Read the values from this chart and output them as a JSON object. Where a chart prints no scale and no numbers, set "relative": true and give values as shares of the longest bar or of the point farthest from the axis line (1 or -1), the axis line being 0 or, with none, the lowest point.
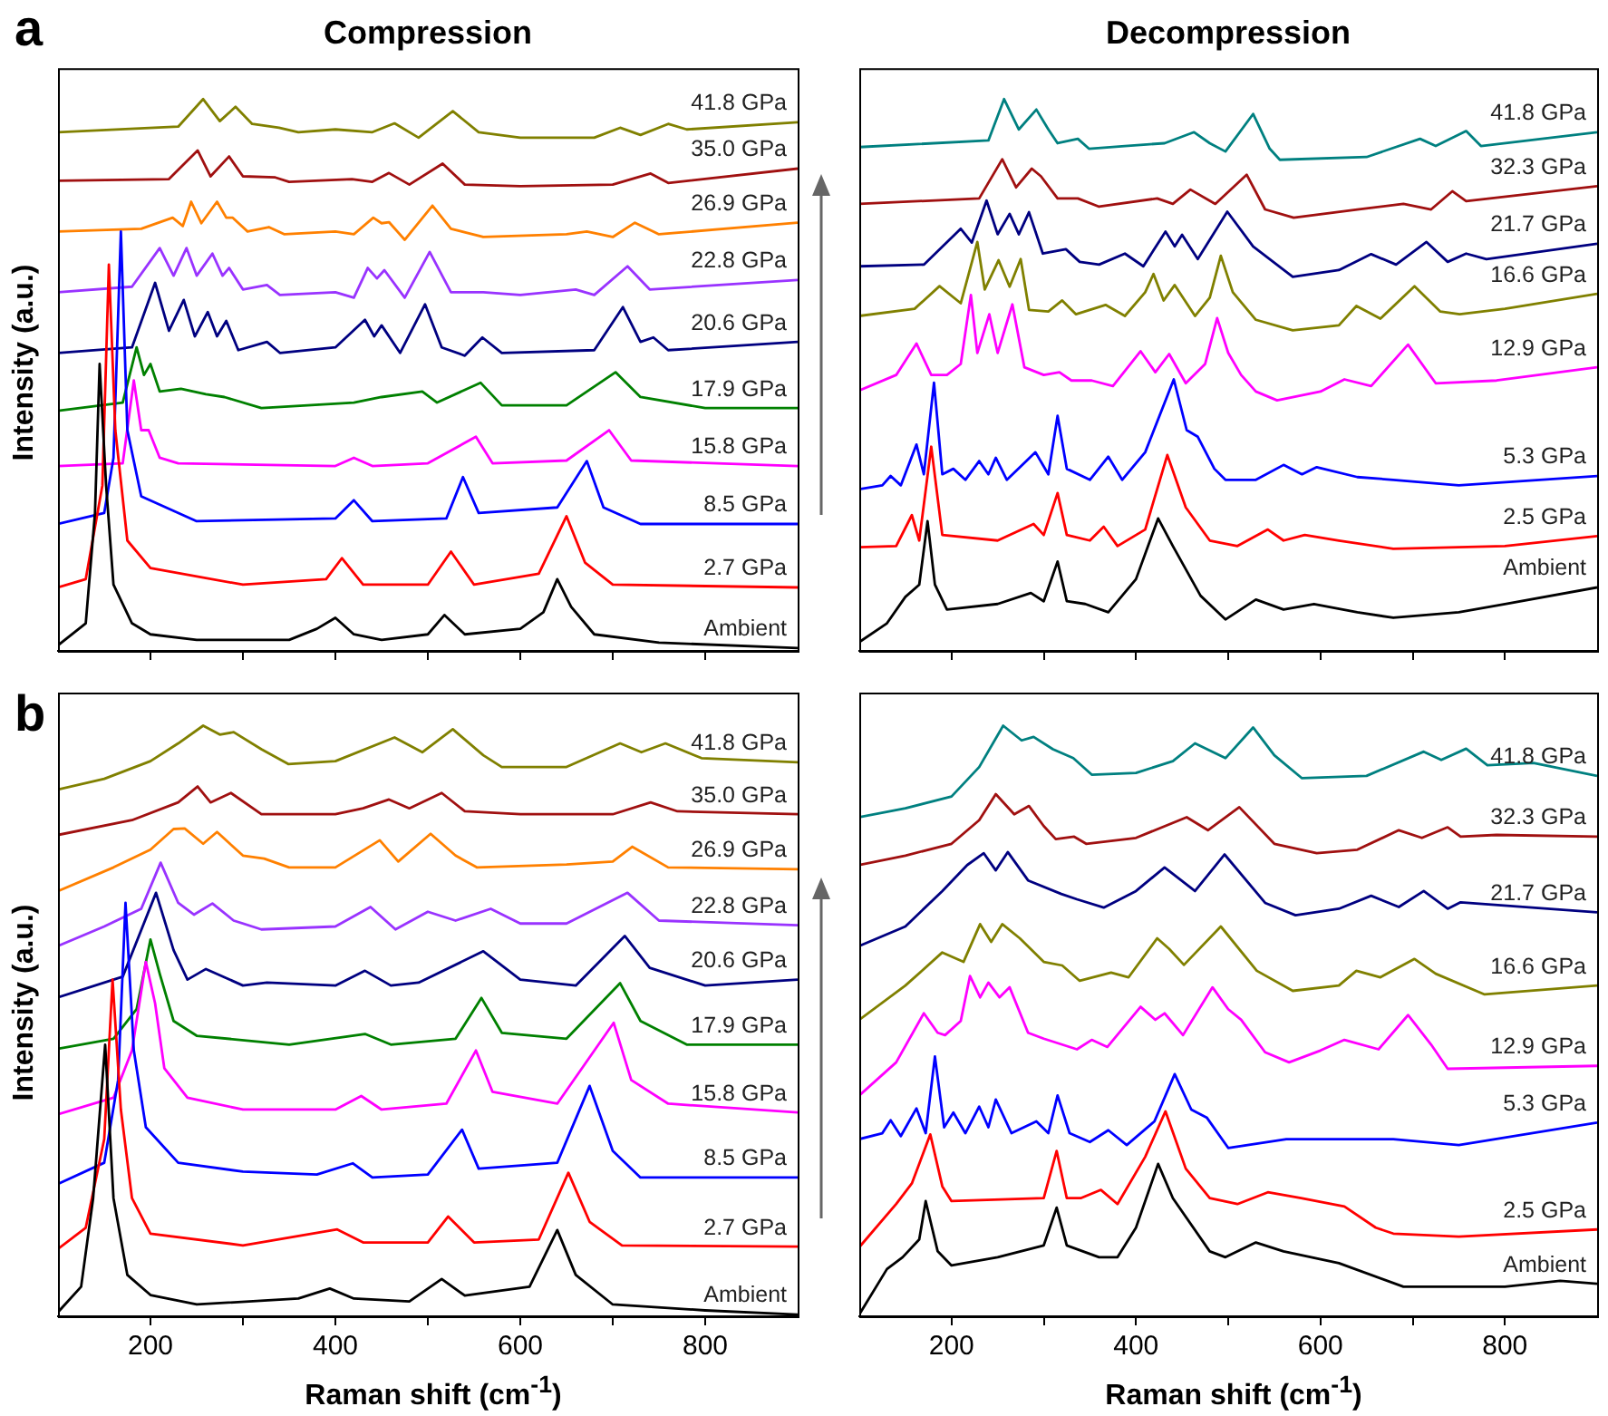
{
  "chart_data": [
    {
      "type": "line",
      "title": "Compression",
      "ylabel": "Intensity (a.u.)",
      "annotations": [
        "a"
      ],
      "relative": true,
      "xlim": [
        100,
        900
      ],
      "xticks": [
        {
          "value": 200,
          "label": null
        },
        {
          "value": 300,
          "label": null
        },
        {
          "value": 400,
          "label": null
        },
        {
          "value": 500,
          "label": null
        },
        {
          "value": 600,
          "label": null
        },
        {
          "value": 700,
          "label": null
        },
        {
          "value": 800,
          "label": null
        }
      ],
      "tick_labels": false,
      "grid": false,
      "legend": false,
      "marker": "none",
      "series": [
        {
          "name": "Ambient",
          "color": "#000000",
          "x": [
            100,
            130,
            140,
            145,
            152,
            160,
            180,
            200,
            250,
            350,
            380,
            400,
            420,
            450,
            500,
            518,
            540,
            600,
            625,
            640,
            655,
            680,
            750,
            900
          ],
          "values": [
            0.01,
            0.05,
            0.25,
            0.52,
            0.3,
            0.12,
            0.05,
            0.03,
            0.02,
            0.02,
            0.04,
            0.06,
            0.03,
            0.02,
            0.03,
            0.065,
            0.03,
            0.04,
            0.07,
            0.13,
            0.08,
            0.03,
            0.015,
            0.005
          ]
        },
        {
          "name": "2.7 GPa",
          "color": "#ff0000",
          "x": [
            100,
            130,
            148,
            155,
            162,
            175,
            200,
            300,
            390,
            407,
            430,
            500,
            525,
            550,
            620,
            650,
            670,
            700,
            900
          ],
          "values": [
            0.115,
            0.13,
            0.3,
            0.7,
            0.4,
            0.2,
            0.15,
            0.12,
            0.13,
            0.168,
            0.12,
            0.12,
            0.18,
            0.12,
            0.14,
            0.244,
            0.16,
            0.12,
            0.115
          ]
        },
        {
          "name": "8.5 GPa",
          "color": "#0000ff",
          "x": [
            100,
            150,
            160,
            168,
            175,
            190,
            250,
            400,
            420,
            440,
            520,
            538,
            555,
            640,
            672,
            690,
            730,
            900
          ],
          "values": [
            0.23,
            0.25,
            0.35,
            0.76,
            0.4,
            0.28,
            0.235,
            0.24,
            0.273,
            0.235,
            0.24,
            0.315,
            0.25,
            0.26,
            0.344,
            0.26,
            0.23,
            0.23
          ]
        },
        {
          "name": "15.8 GPa",
          "color": "#ff00ff",
          "x": [
            100,
            170,
            182,
            190,
            198,
            210,
            230,
            400,
            420,
            440,
            500,
            552,
            570,
            650,
            696,
            720,
            900
          ],
          "values": [
            0.335,
            0.34,
            0.49,
            0.4,
            0.4,
            0.35,
            0.34,
            0.335,
            0.35,
            0.335,
            0.34,
            0.388,
            0.34,
            0.345,
            0.4,
            0.345,
            0.335
          ]
        },
        {
          "name": "17.9 GPa",
          "color": "#008000",
          "x": [
            100,
            170,
            185,
            193,
            200,
            210,
            233,
            260,
            280,
            320,
            420,
            450,
            494,
            510,
            557,
            580,
            650,
            703,
            730,
            800,
            900
          ],
          "values": [
            0.435,
            0.45,
            0.55,
            0.5,
            0.52,
            0.47,
            0.475,
            0.465,
            0.46,
            0.44,
            0.45,
            0.46,
            0.47,
            0.45,
            0.486,
            0.445,
            0.445,
            0.505,
            0.46,
            0.44,
            0.44
          ]
        },
        {
          "name": "20.6 GPa",
          "color": "#000080",
          "x": [
            100,
            180,
            205,
            220,
            236,
            248,
            262,
            272,
            282,
            295,
            326,
            340,
            400,
            432,
            442,
            450,
            470,
            497,
            515,
            540,
            559,
            580,
            680,
            711,
            730,
            744,
            760,
            900
          ],
          "values": [
            0.54,
            0.55,
            0.667,
            0.58,
            0.636,
            0.57,
            0.614,
            0.57,
            0.598,
            0.545,
            0.56,
            0.54,
            0.55,
            0.6,
            0.57,
            0.59,
            0.54,
            0.628,
            0.55,
            0.535,
            0.568,
            0.54,
            0.545,
            0.623,
            0.56,
            0.568,
            0.545,
            0.56
          ]
        },
        {
          "name": "22.8 GPa",
          "color": "#9933ff",
          "x": [
            100,
            180,
            210,
            225,
            239,
            250,
            267,
            278,
            285,
            300,
            326,
            340,
            400,
            420,
            435,
            445,
            453,
            475,
            502,
            525,
            560,
            600,
            660,
            680,
            716,
            740,
            900
          ],
          "values": [
            0.65,
            0.66,
            0.73,
            0.68,
            0.73,
            0.68,
            0.72,
            0.68,
            0.694,
            0.655,
            0.663,
            0.645,
            0.65,
            0.64,
            0.694,
            0.675,
            0.69,
            0.64,
            0.723,
            0.65,
            0.65,
            0.645,
            0.655,
            0.645,
            0.697,
            0.655,
            0.672
          ]
        },
        {
          "name": "26.9 GPa",
          "color": "#ff8000",
          "x": [
            100,
            190,
            224,
            235,
            244,
            255,
            272,
            282,
            289,
            305,
            328,
            345,
            400,
            420,
            441,
            450,
            458,
            475,
            505,
            525,
            560,
            650,
            672,
            700,
            724,
            750,
            900
          ],
          "values": [
            0.76,
            0.765,
            0.785,
            0.77,
            0.814,
            0.775,
            0.814,
            0.785,
            0.785,
            0.76,
            0.768,
            0.755,
            0.76,
            0.755,
            0.785,
            0.775,
            0.777,
            0.745,
            0.807,
            0.765,
            0.75,
            0.755,
            0.76,
            0.75,
            0.776,
            0.755,
            0.776
          ]
        },
        {
          "name": "35.0 GPa",
          "color": "#a01010",
          "x": [
            100,
            220,
            251,
            265,
            285,
            300,
            335,
            350,
            418,
            440,
            458,
            480,
            516,
            540,
            600,
            700,
            741,
            760,
            900
          ],
          "values": [
            0.852,
            0.855,
            0.907,
            0.86,
            0.896,
            0.86,
            0.858,
            0.85,
            0.855,
            0.85,
            0.866,
            0.845,
            0.883,
            0.845,
            0.842,
            0.845,
            0.865,
            0.848,
            0.874
          ]
        },
        {
          "name": "41.8 GPa",
          "color": "#808000",
          "x": [
            100,
            230,
            257,
            275,
            292,
            310,
            339,
            360,
            400,
            440,
            464,
            490,
            527,
            555,
            600,
            680,
            708,
            730,
            760,
            780,
            900
          ],
          "values": [
            0.94,
            0.95,
            1.0,
            0.96,
            0.986,
            0.955,
            0.948,
            0.94,
            0.945,
            0.94,
            0.956,
            0.93,
            0.978,
            0.94,
            0.93,
            0.93,
            0.948,
            0.935,
            0.955,
            0.945,
            0.958
          ]
        }
      ]
    },
    {
      "type": "line",
      "title": "Decompression",
      "relative": true,
      "xlim": [
        100,
        900
      ],
      "xticks": [
        {
          "value": 200,
          "label": null
        },
        {
          "value": 300,
          "label": null
        },
        {
          "value": 400,
          "label": null
        },
        {
          "value": 500,
          "label": null
        },
        {
          "value": 600,
          "label": null
        },
        {
          "value": 700,
          "label": null
        },
        {
          "value": 800,
          "label": null
        }
      ],
      "tick_labels": false,
      "grid": false,
      "legend": false,
      "marker": "none",
      "series": [
        {
          "name": "Ambient",
          "color": "#000000",
          "x": [
            100,
            130,
            150,
            165,
            174,
            182,
            195,
            250,
            286,
            300,
            315,
            325,
            345,
            370,
            400,
            424,
            440,
            470,
            497,
            530,
            560,
            593,
            640,
            679,
            750,
            800,
            900
          ],
          "values": [
            0.016,
            0.05,
            0.098,
            0.12,
            0.235,
            0.12,
            0.075,
            0.085,
            0.105,
            0.09,
            0.162,
            0.09,
            0.085,
            0.07,
            0.13,
            0.24,
            0.19,
            0.1,
            0.057,
            0.093,
            0.075,
            0.085,
            0.07,
            0.06,
            0.07,
            0.085,
            0.115
          ]
        },
        {
          "name": "2.5 GPa",
          "color": "#ff0000",
          "x": [
            100,
            140,
            157,
            165,
            178,
            190,
            250,
            289,
            300,
            315,
            325,
            350,
            365,
            380,
            410,
            434,
            454,
            480,
            510,
            543,
            560,
            583,
            620,
            679,
            800,
            900
          ],
          "values": [
            0.188,
            0.19,
            0.246,
            0.2,
            0.37,
            0.21,
            0.2,
            0.23,
            0.21,
            0.286,
            0.21,
            0.2,
            0.225,
            0.19,
            0.22,
            0.355,
            0.26,
            0.2,
            0.19,
            0.22,
            0.2,
            0.21,
            0.2,
            0.185,
            0.19,
            0.208
          ]
        },
        {
          "name": "5.3 GPa",
          "color": "#0000ff",
          "x": [
            100,
            125,
            134,
            145,
            162,
            170,
            181,
            190,
            202,
            215,
            230,
            240,
            248,
            260,
            291,
            305,
            315,
            325,
            350,
            370,
            385,
            410,
            441,
            455,
            467,
            485,
            497,
            530,
            560,
            580,
            596,
            640,
            679,
            750,
            900
          ],
          "values": [
            0.293,
            0.3,
            0.317,
            0.3,
            0.374,
            0.32,
            0.486,
            0.32,
            0.33,
            0.31,
            0.344,
            0.32,
            0.35,
            0.31,
            0.36,
            0.32,
            0.426,
            0.33,
            0.31,
            0.352,
            0.31,
            0.36,
            0.492,
            0.4,
            0.388,
            0.33,
            0.31,
            0.31,
            0.337,
            0.32,
            0.333,
            0.315,
            0.31,
            0.3,
            0.317
          ]
        },
        {
          "name": "12.9 GPa",
          "color": "#ff00ff",
          "x": [
            100,
            140,
            162,
            178,
            195,
            210,
            221,
            228,
            241,
            250,
            266,
            279,
            300,
            317,
            330,
            352,
            375,
            405,
            421,
            436,
            454,
            475,
            488,
            500,
            514,
            530,
            553,
            600,
            626,
            655,
            695,
            725,
            791,
            900
          ],
          "values": [
            0.472,
            0.5,
            0.557,
            0.5,
            0.5,
            0.52,
            0.645,
            0.54,
            0.61,
            0.54,
            0.628,
            0.514,
            0.5,
            0.505,
            0.49,
            0.49,
            0.48,
            0.543,
            0.505,
            0.538,
            0.485,
            0.52,
            0.603,
            0.54,
            0.5,
            0.47,
            0.454,
            0.47,
            0.492,
            0.48,
            0.555,
            0.485,
            0.49,
            0.514
          ]
        },
        {
          "name": "16.6 GPa",
          "color": "#808000",
          "x": [
            100,
            160,
            187,
            210,
            228,
            236,
            251,
            263,
            275,
            284,
            305,
            320,
            335,
            367,
            388,
            410,
            419,
            430,
            442,
            464,
            480,
            492,
            505,
            530,
            570,
            620,
            639,
            665,
            702,
            730,
            751,
            800,
            900
          ],
          "values": [
            0.607,
            0.62,
            0.661,
            0.63,
            0.741,
            0.655,
            0.708,
            0.66,
            0.71,
            0.618,
            0.615,
            0.635,
            0.61,
            0.627,
            0.607,
            0.65,
            0.683,
            0.635,
            0.663,
            0.607,
            0.64,
            0.716,
            0.65,
            0.6,
            0.581,
            0.59,
            0.625,
            0.602,
            0.661,
            0.615,
            0.61,
            0.62,
            0.647
          ]
        },
        {
          "name": "21.7 GPa",
          "color": "#000080",
          "x": [
            100,
            170,
            210,
            222,
            238,
            250,
            263,
            273,
            284,
            299,
            324,
            339,
            360,
            388,
            408,
            432,
            442,
            450,
            467,
            499,
            527,
            570,
            620,
            655,
            682,
            715,
            738,
            758,
            780,
            900
          ],
          "values": [
            0.697,
            0.7,
            0.765,
            0.74,
            0.816,
            0.755,
            0.792,
            0.755,
            0.795,
            0.72,
            0.728,
            0.705,
            0.7,
            0.72,
            0.697,
            0.76,
            0.733,
            0.754,
            0.71,
            0.796,
            0.733,
            0.678,
            0.69,
            0.719,
            0.7,
            0.741,
            0.705,
            0.72,
            0.71,
            0.738
          ]
        },
        {
          "name": "32.3 GPa",
          "color": "#a01010",
          "x": [
            100,
            230,
            255,
            270,
            287,
            297,
            315,
            337,
            360,
            423,
            440,
            459,
            486,
            520,
            540,
            571,
            640,
            690,
            720,
            743,
            758,
            900
          ],
          "values": [
            0.81,
            0.82,
            0.891,
            0.84,
            0.874,
            0.86,
            0.82,
            0.82,
            0.805,
            0.82,
            0.81,
            0.836,
            0.81,
            0.863,
            0.8,
            0.785,
            0.8,
            0.81,
            0.8,
            0.833,
            0.815,
            0.842
          ]
        },
        {
          "name": "41.8 GPa",
          "color": "#008080",
          "x": [
            100,
            240,
            257,
            273,
            292,
            305,
            315,
            337,
            349,
            388,
            431,
            463,
            480,
            497,
            527,
            545,
            556,
            650,
            708,
            725,
            758,
            774,
            900
          ],
          "values": [
            0.913,
            0.925,
            1.0,
            0.945,
            0.981,
            0.945,
            0.92,
            0.928,
            0.91,
            0.915,
            0.92,
            0.94,
            0.92,
            0.905,
            0.973,
            0.91,
            0.89,
            0.895,
            0.928,
            0.915,
            0.942,
            0.915,
            0.94
          ]
        }
      ]
    },
    {
      "type": "line",
      "xlabel": "Raman shift (cm$^{-1}$)",
      "ylabel": "Intensity (a.u.)",
      "annotations": [
        "b"
      ],
      "relative": true,
      "xlim": [
        100,
        900
      ],
      "xticks": [
        {
          "value": 200,
          "label": "200"
        },
        {
          "value": 300,
          "label": null
        },
        {
          "value": 400,
          "label": "400"
        },
        {
          "value": 500,
          "label": null
        },
        {
          "value": 600,
          "label": "600"
        },
        {
          "value": 700,
          "label": null
        },
        {
          "value": 800,
          "label": "800"
        }
      ],
      "tick_labels": "x",
      "grid": false,
      "legend": false,
      "marker": "none",
      "series": [
        {
          "name": "Ambient",
          "color": "#000000",
          "x": [
            100,
            125,
            138,
            151,
            160,
            175,
            200,
            250,
            360,
            394,
            420,
            480,
            515,
            540,
            610,
            640,
            660,
            700,
            800,
            900
          ],
          "values": [
            0.007,
            0.05,
            0.2,
            0.46,
            0.2,
            0.07,
            0.036,
            0.02,
            0.03,
            0.047,
            0.03,
            0.025,
            0.063,
            0.035,
            0.05,
            0.146,
            0.07,
            0.02,
            0.01,
            0.003
          ]
        },
        {
          "name": "2.7 GPa",
          "color": "#ff0000",
          "x": [
            100,
            130,
            150,
            159,
            168,
            180,
            200,
            300,
            402,
            430,
            500,
            522,
            550,
            620,
            652,
            675,
            710,
            900
          ],
          "values": [
            0.114,
            0.15,
            0.3,
            0.57,
            0.35,
            0.2,
            0.14,
            0.12,
            0.147,
            0.125,
            0.125,
            0.169,
            0.125,
            0.13,
            0.243,
            0.16,
            0.12,
            0.118
          ]
        },
        {
          "name": "8.5 GPa",
          "color": "#0000ff",
          "x": [
            100,
            150,
            165,
            173,
            182,
            195,
            230,
            300,
            380,
            419,
            440,
            500,
            537,
            555,
            640,
            675,
            700,
            730,
            900
          ],
          "values": [
            0.224,
            0.26,
            0.4,
            0.7,
            0.45,
            0.32,
            0.26,
            0.245,
            0.24,
            0.259,
            0.235,
            0.24,
            0.316,
            0.25,
            0.26,
            0.39,
            0.28,
            0.235,
            0.235
          ]
        },
        {
          "name": "15.8 GPa",
          "color": "#ff00ff",
          "x": [
            100,
            160,
            180,
            195,
            205,
            215,
            240,
            300,
            400,
            428,
            450,
            520,
            552,
            570,
            640,
            701,
            720,
            760,
            900
          ],
          "values": [
            0.342,
            0.37,
            0.45,
            0.6,
            0.53,
            0.42,
            0.37,
            0.35,
            0.35,
            0.373,
            0.35,
            0.36,
            0.45,
            0.38,
            0.36,
            0.497,
            0.4,
            0.36,
            0.345
          ]
        },
        {
          "name": "17.9 GPa",
          "color": "#008000",
          "x": [
            100,
            160,
            185,
            200,
            210,
            225,
            250,
            350,
            432,
            460,
            530,
            558,
            580,
            650,
            708,
            730,
            780,
            900
          ],
          "values": [
            0.453,
            0.47,
            0.52,
            0.638,
            0.58,
            0.5,
            0.475,
            0.46,
            0.478,
            0.46,
            0.47,
            0.539,
            0.48,
            0.47,
            0.564,
            0.5,
            0.46,
            0.46
          ]
        },
        {
          "name": "20.6 GPa",
          "color": "#000080",
          "x": [
            100,
            170,
            206,
            225,
            240,
            260,
            300,
            326,
            400,
            432,
            460,
            490,
            560,
            600,
            660,
            713,
            740,
            800,
            900
          ],
          "values": [
            0.54,
            0.575,
            0.717,
            0.62,
            0.57,
            0.588,
            0.56,
            0.565,
            0.56,
            0.585,
            0.56,
            0.565,
            0.618,
            0.57,
            0.56,
            0.644,
            0.59,
            0.56,
            0.57
          ]
        },
        {
          "name": "22.8 GPa",
          "color": "#9933ff",
          "x": [
            100,
            150,
            190,
            211,
            230,
            247,
            267,
            290,
            320,
            400,
            438,
            465,
            500,
            530,
            568,
            600,
            650,
            716,
            750,
            900
          ],
          "values": [
            0.627,
            0.66,
            0.69,
            0.768,
            0.7,
            0.68,
            0.699,
            0.67,
            0.655,
            0.66,
            0.693,
            0.655,
            0.685,
            0.67,
            0.69,
            0.665,
            0.665,
            0.717,
            0.67,
            0.662
          ]
        },
        {
          "name": "26.9 GPa",
          "color": "#ff8000",
          "x": [
            100,
            160,
            200,
            225,
            237,
            257,
            272,
            300,
            323,
            350,
            400,
            448,
            468,
            503,
            530,
            553,
            650,
            700,
            721,
            760,
            900
          ],
          "values": [
            0.72,
            0.76,
            0.79,
            0.825,
            0.826,
            0.8,
            0.82,
            0.78,
            0.775,
            0.76,
            0.76,
            0.806,
            0.77,
            0.817,
            0.78,
            0.76,
            0.765,
            0.77,
            0.795,
            0.76,
            0.757
          ]
        },
        {
          "name": "35.0 GPa",
          "color": "#a01010",
          "x": [
            100,
            180,
            230,
            251,
            265,
            287,
            320,
            400,
            430,
            458,
            480,
            515,
            540,
            600,
            700,
            741,
            770,
            900
          ],
          "values": [
            0.815,
            0.84,
            0.87,
            0.897,
            0.87,
            0.886,
            0.85,
            0.85,
            0.86,
            0.875,
            0.86,
            0.886,
            0.855,
            0.85,
            0.85,
            0.87,
            0.855,
            0.85
          ]
        },
        {
          "name": "41.8 GPa",
          "color": "#808000",
          "x": [
            100,
            150,
            200,
            230,
            257,
            275,
            290,
            320,
            349,
            400,
            464,
            494,
            527,
            560,
            580,
            650,
            708,
            731,
            757,
            796,
            900
          ],
          "values": [
            0.892,
            0.91,
            0.94,
            0.97,
            1.0,
            0.985,
            0.989,
            0.96,
            0.935,
            0.94,
            0.98,
            0.955,
            0.994,
            0.95,
            0.93,
            0.93,
            0.97,
            0.955,
            0.97,
            0.945,
            0.938
          ]
        }
      ]
    },
    {
      "type": "line",
      "xlabel": "Raman shift (cm$^{-1}$)",
      "relative": true,
      "xlim": [
        100,
        900
      ],
      "xticks": [
        {
          "value": 200,
          "label": "200"
        },
        {
          "value": 300,
          "label": null
        },
        {
          "value": 400,
          "label": "400"
        },
        {
          "value": 500,
          "label": null
        },
        {
          "value": 600,
          "label": "600"
        },
        {
          "value": 700,
          "label": null
        },
        {
          "value": 800,
          "label": "800"
        }
      ],
      "tick_labels": "x",
      "grid": false,
      "legend": false,
      "marker": "none",
      "series": [
        {
          "name": "Ambient",
          "color": "#000000",
          "x": [
            100,
            130,
            147,
            165,
            172,
            185,
            200,
            250,
            300,
            314,
            325,
            360,
            380,
            400,
            424,
            440,
            480,
            497,
            530,
            560,
            620,
            690,
            800,
            860,
            900
          ],
          "values": [
            0.003,
            0.08,
            0.1,
            0.13,
            0.195,
            0.11,
            0.086,
            0.1,
            0.12,
            0.184,
            0.12,
            0.1,
            0.1,
            0.15,
            0.258,
            0.2,
            0.11,
            0.1,
            0.125,
            0.11,
            0.09,
            0.05,
            0.05,
            0.06,
            0.055
          ]
        },
        {
          "name": "2.5 GPa",
          "color": "#ff0000",
          "x": [
            100,
            140,
            157,
            177,
            190,
            200,
            300,
            314,
            325,
            340,
            362,
            380,
            410,
            432,
            454,
            480,
            510,
            543,
            579,
            626,
            660,
            679,
            750,
            900
          ],
          "values": [
            0.117,
            0.19,
            0.225,
            0.308,
            0.22,
            0.195,
            0.2,
            0.28,
            0.2,
            0.2,
            0.214,
            0.19,
            0.27,
            0.347,
            0.25,
            0.2,
            0.19,
            0.21,
            0.2,
            0.186,
            0.15,
            0.14,
            0.135,
            0.147
          ]
        },
        {
          "name": "5.3 GPa",
          "color": "#0000ff",
          "x": [
            100,
            125,
            134,
            145,
            162,
            172,
            182,
            192,
            202,
            215,
            230,
            240,
            248,
            265,
            292,
            305,
            315,
            328,
            350,
            370,
            390,
            420,
            442,
            460,
            477,
            500,
            563,
            620,
            679,
            750,
            900
          ],
          "values": [
            0.3,
            0.31,
            0.332,
            0.305,
            0.352,
            0.31,
            0.44,
            0.32,
            0.345,
            0.31,
            0.355,
            0.32,
            0.367,
            0.31,
            0.33,
            0.31,
            0.374,
            0.31,
            0.295,
            0.315,
            0.29,
            0.33,
            0.41,
            0.35,
            0.336,
            0.285,
            0.3,
            0.3,
            0.3,
            0.29,
            0.328
          ]
        },
        {
          "name": "12.9 GPa",
          "color": "#ff00ff",
          "x": [
            100,
            140,
            170,
            185,
            193,
            210,
            220,
            231,
            240,
            252,
            263,
            283,
            300,
            336,
            352,
            369,
            405,
            421,
            431,
            451,
            483,
            500,
            514,
            540,
            566,
            600,
            626,
            663,
            695,
            720,
            738,
            900
          ],
          "values": [
            0.374,
            0.43,
            0.513,
            0.48,
            0.476,
            0.5,
            0.576,
            0.54,
            0.565,
            0.54,
            0.557,
            0.48,
            0.47,
            0.452,
            0.468,
            0.456,
            0.524,
            0.502,
            0.513,
            0.476,
            0.557,
            0.52,
            0.502,
            0.447,
            0.43,
            0.45,
            0.468,
            0.452,
            0.51,
            0.46,
            0.419,
            0.424
          ]
        },
        {
          "name": "16.6 GPa",
          "color": "#808000",
          "x": [
            100,
            150,
            190,
            213,
            231,
            243,
            255,
            274,
            300,
            320,
            339,
            373,
            392,
            423,
            436,
            452,
            492,
            531,
            570,
            620,
            639,
            665,
            702,
            725,
            778,
            900
          ],
          "values": [
            0.502,
            0.56,
            0.616,
            0.6,
            0.664,
            0.634,
            0.664,
            0.64,
            0.6,
            0.594,
            0.568,
            0.582,
            0.574,
            0.64,
            0.622,
            0.595,
            0.66,
            0.585,
            0.551,
            0.56,
            0.585,
            0.574,
            0.605,
            0.58,
            0.545,
            0.56
          ]
        },
        {
          "name": "21.7 GPa",
          "color": "#000080",
          "x": [
            100,
            150,
            190,
            217,
            235,
            248,
            261,
            283,
            319,
            336,
            365,
            400,
            431,
            464,
            496,
            540,
            573,
            620,
            655,
            685,
            712,
            738,
            752,
            900
          ],
          "values": [
            0.627,
            0.66,
            0.72,
            0.764,
            0.784,
            0.755,
            0.786,
            0.738,
            0.715,
            0.706,
            0.692,
            0.72,
            0.76,
            0.72,
            0.782,
            0.7,
            0.679,
            0.69,
            0.712,
            0.693,
            0.72,
            0.69,
            0.701,
            0.684
          ]
        },
        {
          "name": "32.3 GPa",
          "color": "#a01010",
          "x": [
            100,
            150,
            200,
            230,
            248,
            268,
            284,
            300,
            313,
            333,
            346,
            400,
            455,
            478,
            512,
            550,
            596,
            640,
            685,
            710,
            738,
            752,
            791,
            900
          ],
          "values": [
            0.764,
            0.78,
            0.8,
            0.84,
            0.884,
            0.85,
            0.864,
            0.83,
            0.808,
            0.812,
            0.8,
            0.81,
            0.845,
            0.823,
            0.862,
            0.8,
            0.784,
            0.79,
            0.823,
            0.81,
            0.828,
            0.812,
            0.815,
            0.812
          ]
        },
        {
          "name": "41.8 GPa",
          "color": "#008080",
          "x": [
            100,
            150,
            200,
            230,
            256,
            276,
            289,
            310,
            332,
            352,
            400,
            440,
            464,
            497,
            527,
            550,
            580,
            650,
            712,
            731,
            758,
            781,
            831,
            900
          ],
          "values": [
            0.845,
            0.86,
            0.88,
            0.93,
            1.0,
            0.975,
            0.981,
            0.96,
            0.945,
            0.917,
            0.92,
            0.94,
            0.97,
            0.945,
            0.997,
            0.95,
            0.911,
            0.915,
            0.956,
            0.942,
            0.961,
            0.933,
            0.937,
            0.915
          ]
        }
      ]
    }
  ]
}
